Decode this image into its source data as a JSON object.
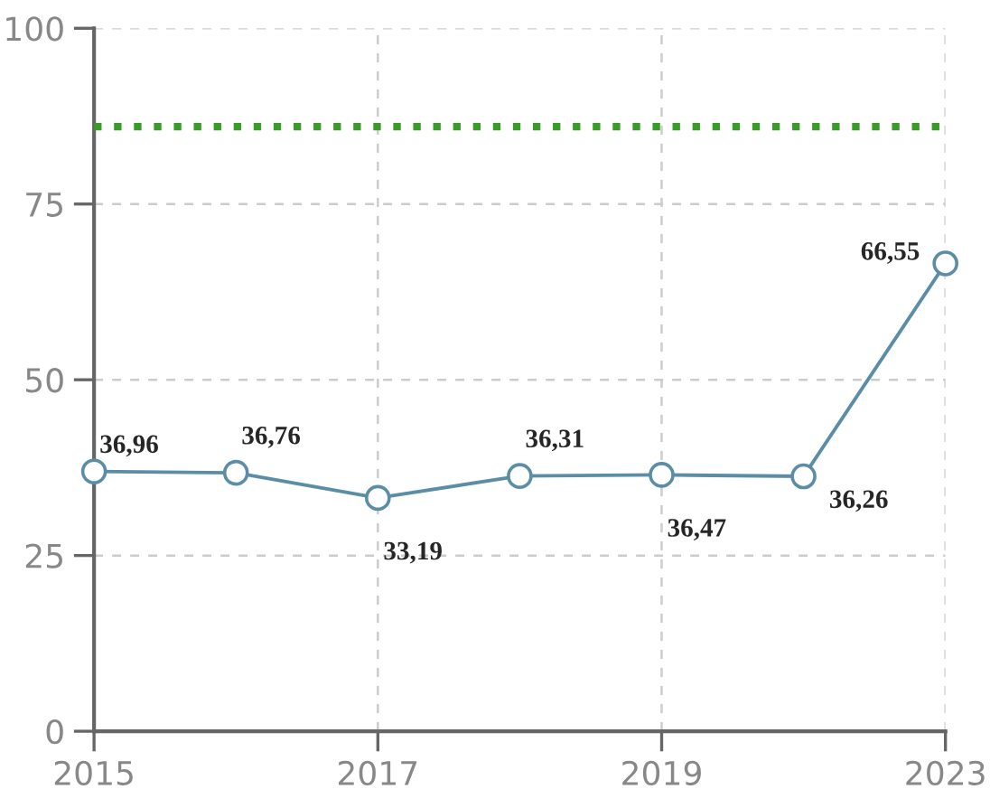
{
  "chart_data": {
    "type": "line",
    "categories": [
      "2015",
      null,
      "2017",
      null,
      "2019",
      null,
      "2023"
    ],
    "series": [
      {
        "color": "#5b8ea6",
        "values": [
          36.96,
          36.76,
          33.19,
          36.31,
          36.47,
          36.26,
          66.55
        ],
        "value_labels": [
          "36,96",
          "36,76",
          "33,19",
          "36,31",
          "36,47",
          "36,26",
          "66,55"
        ]
      }
    ],
    "ylim": [
      0,
      100
    ],
    "yticks": [
      0,
      25,
      50,
      75,
      100
    ],
    "ref_lines": [
      {
        "axis": "y",
        "value": 86,
        "color": "#3a9a2a",
        "line_style": "dotted"
      }
    ],
    "grid": true,
    "marker": "circle",
    "line_style": "solid"
  }
}
